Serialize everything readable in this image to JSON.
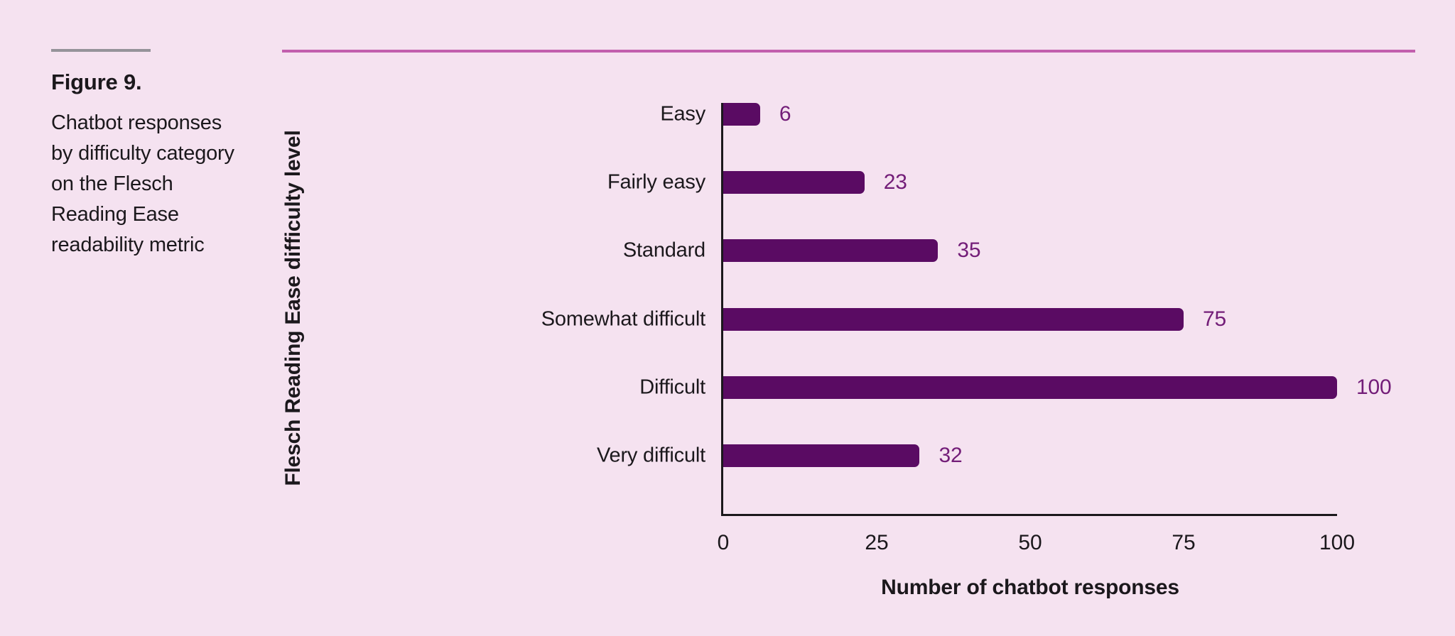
{
  "figure": {
    "label": "Figure 9.",
    "caption": "Chatbot responses by difficulty category on the Flesch Reading Ease readability metric"
  },
  "chart_data": {
    "type": "bar",
    "orientation": "horizontal",
    "title": "",
    "categories": [
      "Easy",
      "Fairly easy",
      "Standard",
      "Somewhat difficult",
      "Difficult",
      "Very difficult"
    ],
    "values": [
      6,
      23,
      35,
      75,
      100,
      32
    ],
    "xlabel": "Number of chatbot responses",
    "ylabel": "Flesch Reading Ease difficulty level",
    "xticks": [
      0,
      25,
      50,
      75,
      100
    ],
    "xlim": [
      0,
      100
    ],
    "grid": false,
    "legend": false,
    "value_labels_shown": true
  },
  "colors": {
    "background": "#f5e2f0",
    "bar": "#5a0b63",
    "value_label": "#731d78",
    "text": "#1b181c",
    "axis_line": "#1b181c",
    "accent_line": "#c25fad",
    "figure_rule": "#95939a"
  }
}
